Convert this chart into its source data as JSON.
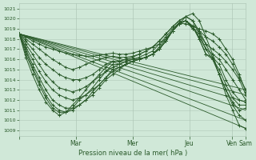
{
  "xlabel": "Pression niveau de la mer( hPa )",
  "ylim": [
    1008.5,
    1021.5
  ],
  "yticks": [
    1009,
    1010,
    1011,
    1012,
    1013,
    1014,
    1015,
    1016,
    1017,
    1018,
    1019,
    1020,
    1021
  ],
  "bg_color": "#d0e8d8",
  "grid_color": "#b0c8b8",
  "line_color": "#2a5a2a",
  "line_width": 0.7,
  "marker": "+",
  "marker_size": 2.5,
  "day_x": [
    0,
    48,
    96,
    144,
    180,
    192
  ],
  "day_labels": [
    "",
    "Mar",
    "Mer",
    "Jeu",
    "Ven",
    "Sam"
  ],
  "series": [
    [
      1018.5,
      1018.2,
      1017.8,
      1017.5,
      1017.2,
      1017.0,
      1016.8,
      1016.6,
      1016.5,
      1016.4,
      1016.3,
      1016.3,
      1016.4,
      1016.5,
      1016.6,
      1016.5,
      1016.5,
      1016.6,
      1016.8,
      1017.0,
      1017.2,
      1017.5,
      1018.0,
      1018.8,
      1019.5,
      1020.2,
      1020.5,
      1019.8,
      1018.2,
      1016.5,
      1014.5,
      1012.5,
      1011.0,
      1009.5,
      1009.2
    ],
    [
      1018.5,
      1018.0,
      1017.5,
      1017.0,
      1016.5,
      1016.0,
      1015.6,
      1015.2,
      1015.0,
      1015.2,
      1015.5,
      1015.8,
      1016.0,
      1016.2,
      1016.3,
      1016.2,
      1016.2,
      1016.3,
      1016.5,
      1016.8,
      1017.2,
      1017.8,
      1018.5,
      1019.2,
      1019.8,
      1020.2,
      1019.8,
      1018.8,
      1017.5,
      1016.2,
      1014.5,
      1013.0,
      1011.5,
      1010.5,
      1010.0
    ],
    [
      1018.5,
      1017.8,
      1017.0,
      1016.2,
      1015.5,
      1015.0,
      1014.5,
      1014.2,
      1014.0,
      1014.0,
      1014.2,
      1014.5,
      1015.0,
      1015.5,
      1015.8,
      1015.8,
      1016.0,
      1016.2,
      1016.5,
      1016.8,
      1017.2,
      1017.8,
      1018.5,
      1019.2,
      1019.8,
      1020.2,
      1019.8,
      1018.5,
      1017.0,
      1016.0,
      1014.5,
      1013.0,
      1011.8,
      1011.0,
      1011.2
    ],
    [
      1018.5,
      1017.5,
      1016.5,
      1015.5,
      1014.5,
      1013.8,
      1013.2,
      1013.0,
      1012.8,
      1013.0,
      1013.3,
      1013.8,
      1014.3,
      1014.8,
      1015.2,
      1015.5,
      1015.8,
      1016.0,
      1016.2,
      1016.5,
      1016.8,
      1017.5,
      1018.2,
      1019.0,
      1019.6,
      1019.8,
      1019.3,
      1018.0,
      1016.5,
      1016.0,
      1015.0,
      1013.5,
      1012.2,
      1011.5,
      1011.5
    ],
    [
      1018.5,
      1017.2,
      1016.0,
      1014.8,
      1013.8,
      1013.0,
      1012.5,
      1012.2,
      1012.0,
      1012.2,
      1012.5,
      1013.0,
      1013.5,
      1014.2,
      1014.8,
      1015.2,
      1015.5,
      1015.8,
      1016.0,
      1016.2,
      1016.5,
      1017.2,
      1018.0,
      1018.8,
      1019.5,
      1019.8,
      1019.2,
      1018.0,
      1016.5,
      1016.2,
      1015.5,
      1014.0,
      1012.8,
      1012.0,
      1011.8
    ],
    [
      1018.5,
      1017.0,
      1015.5,
      1014.2,
      1013.0,
      1012.0,
      1011.5,
      1011.2,
      1011.2,
      1011.5,
      1012.0,
      1012.5,
      1013.2,
      1014.0,
      1014.5,
      1015.0,
      1015.5,
      1015.8,
      1016.0,
      1016.2,
      1016.5,
      1017.0,
      1017.8,
      1018.8,
      1019.5,
      1019.8,
      1019.2,
      1018.2,
      1017.0,
      1016.5,
      1016.0,
      1015.0,
      1014.0,
      1013.0,
      1012.0
    ],
    [
      1018.5,
      1016.8,
      1015.2,
      1013.8,
      1012.5,
      1011.5,
      1011.0,
      1010.8,
      1011.0,
      1011.5,
      1012.0,
      1012.8,
      1013.5,
      1014.2,
      1015.0,
      1015.2,
      1015.5,
      1015.8,
      1016.0,
      1016.2,
      1016.5,
      1017.0,
      1017.8,
      1018.8,
      1019.5,
      1019.8,
      1019.0,
      1018.5,
      1017.5,
      1017.0,
      1016.5,
      1015.8,
      1015.0,
      1014.0,
      1012.5
    ],
    [
      1018.5,
      1016.5,
      1015.0,
      1013.5,
      1012.2,
      1011.2,
      1010.8,
      1010.8,
      1011.2,
      1012.0,
      1012.5,
      1013.2,
      1014.0,
      1014.8,
      1015.5,
      1015.5,
      1015.8,
      1016.0,
      1016.0,
      1016.2,
      1016.5,
      1017.0,
      1017.8,
      1018.8,
      1019.5,
      1019.8,
      1019.0,
      1018.8,
      1018.2,
      1017.8,
      1017.2,
      1016.5,
      1015.5,
      1014.2,
      1013.0
    ],
    [
      1018.5,
      1016.2,
      1014.5,
      1013.0,
      1011.8,
      1011.0,
      1010.5,
      1010.8,
      1011.5,
      1012.2,
      1013.0,
      1013.8,
      1014.5,
      1015.2,
      1015.8,
      1015.8,
      1016.0,
      1016.0,
      1016.0,
      1016.2,
      1016.5,
      1017.0,
      1017.8,
      1018.8,
      1019.5,
      1019.5,
      1019.2,
      1019.0,
      1018.8,
      1018.5,
      1018.0,
      1017.0,
      1016.0,
      1014.5,
      1012.8
    ]
  ],
  "straight_lines": [
    [
      1018.5,
      1009.2
    ],
    [
      1018.5,
      1010.0
    ],
    [
      1018.5,
      1011.0
    ],
    [
      1018.5,
      1011.8
    ],
    [
      1018.5,
      1012.5
    ],
    [
      1018.5,
      1013.0
    ]
  ]
}
